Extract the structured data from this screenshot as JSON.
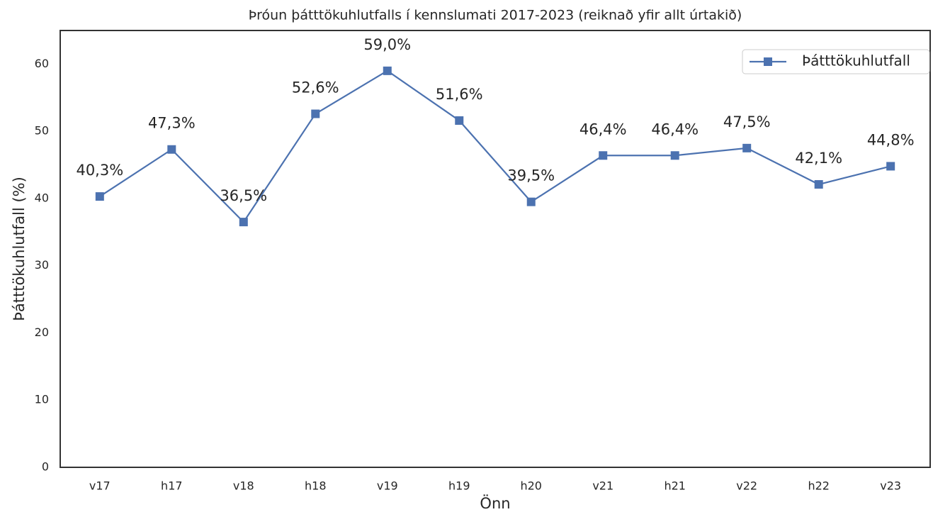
{
  "chart_data": {
    "type": "line",
    "title": "Þróun þátttökuhlutfalls í kennslumati 2017-2023 (reiknað yfir allt úrtakið)",
    "xlabel": "Önn",
    "ylabel": "Þátttökuhlutfall (%)",
    "categories": [
      "v17",
      "h17",
      "v18",
      "h18",
      "v19",
      "h19",
      "h20",
      "v21",
      "h21",
      "v22",
      "h22",
      "v23"
    ],
    "series": [
      {
        "name": "Þátttökuhlutfall",
        "color": "#4c72b0",
        "values": [
          40.3,
          47.3,
          36.5,
          52.6,
          59.0,
          51.6,
          39.5,
          46.4,
          46.4,
          47.5,
          42.1,
          44.8
        ],
        "value_labels": [
          "40,3%",
          "47,3%",
          "36,5%",
          "52,6%",
          "59,0%",
          "51,6%",
          "39,5%",
          "46,4%",
          "46,4%",
          "47,5%",
          "42,1%",
          "44,8%"
        ]
      }
    ],
    "ylim": [
      0,
      65
    ],
    "yticks": [
      0,
      10,
      20,
      30,
      40,
      50,
      60
    ],
    "grid": false,
    "legend": "upper right"
  }
}
